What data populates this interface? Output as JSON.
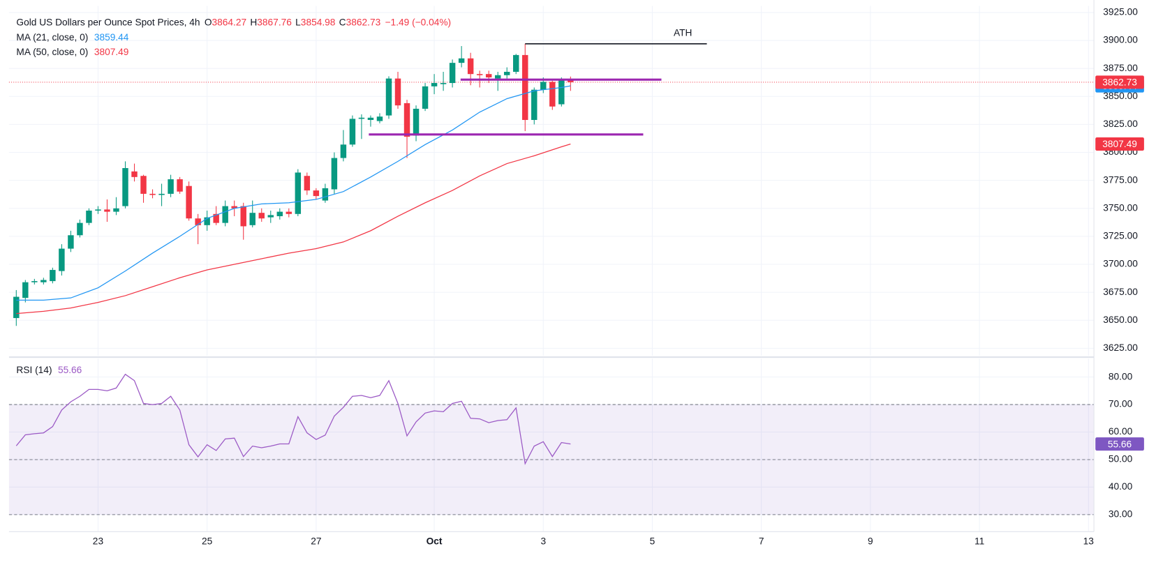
{
  "chart_data": [
    {
      "type": "candlestick",
      "title": "Gold US Dollars per Ounce Spot Prices, 4h",
      "ohlc_prefixes": [
        "O",
        "H",
        "L",
        "C"
      ],
      "change_label": "−1.49 (−0.04%)",
      "up_color": "#089981",
      "down_color": "#f23645",
      "x": [
        0,
        1,
        2,
        3,
        4,
        5,
        6,
        7,
        8,
        9,
        10,
        11,
        12,
        13,
        14,
        15,
        16,
        17,
        18,
        19,
        20,
        21,
        22,
        23,
        24,
        25,
        26,
        27,
        28,
        29,
        30,
        31,
        32,
        33,
        34,
        35,
        36,
        37,
        38,
        39,
        40,
        41,
        42,
        43,
        44,
        45,
        46,
        47,
        48,
        49,
        50,
        51,
        52,
        53,
        54,
        55,
        56,
        57,
        58,
        59,
        60,
        61
      ],
      "open": [
        3652,
        3670,
        3684,
        3684,
        3685,
        3694,
        3714,
        3726,
        3737,
        3748,
        3749,
        3747,
        3752,
        3783,
        3779,
        3763,
        3762,
        3763,
        3776,
        3770,
        3741,
        3735,
        3745,
        3737,
        3752,
        3752,
        3735,
        3746,
        3742,
        3743,
        3747,
        3745,
        3779,
        3766,
        3757,
        3767,
        3795,
        3807,
        3830,
        3829,
        3828,
        3833,
        3866,
        3844,
        3815,
        3839,
        3859,
        3861,
        3862,
        3880,
        3884,
        3870,
        3870,
        3866,
        3869,
        3872,
        3887,
        3829,
        3856,
        3863,
        3843,
        3864.27
      ],
      "high": [
        3677,
        3686,
        3687,
        3688,
        3697,
        3718,
        3730,
        3740,
        3750,
        3752,
        3758,
        3760,
        3792,
        3790,
        3780,
        3767,
        3772,
        3780,
        3778,
        3774,
        3745,
        3748,
        3752,
        3757,
        3757,
        3755,
        3757,
        3750,
        3748,
        3750,
        3750,
        3785,
        3782,
        3768,
        3772,
        3800,
        3820,
        3833,
        3834,
        3833,
        3835,
        3868,
        3872,
        3847,
        3842,
        3862,
        3870,
        3872,
        3883,
        3895,
        3889,
        3873,
        3873,
        3872,
        3876,
        3888,
        3897,
        3858,
        3867,
        3864,
        3867,
        3867.76
      ],
      "low": [
        3645,
        3666,
        3682,
        3682,
        3683,
        3690,
        3711,
        3724,
        3735,
        3745,
        3738,
        3744,
        3750,
        3774,
        3755,
        3759,
        3752,
        3760,
        3763,
        3739,
        3718,
        3730,
        3735,
        3734,
        3743,
        3722,
        3733,
        3738,
        3737,
        3740,
        3742,
        3743,
        3762,
        3758,
        3755,
        3763,
        3792,
        3805,
        3812,
        3823,
        3826,
        3830,
        3839,
        3795,
        3810,
        3837,
        3852,
        3855,
        3858,
        3876,
        3860,
        3858,
        3862,
        3855,
        3866,
        3870,
        3819,
        3825,
        3853,
        3838,
        3841,
        3854.98
      ],
      "close": [
        3671,
        3684,
        3685,
        3686,
        3695,
        3714,
        3726,
        3737,
        3748,
        3749,
        3747,
        3750,
        3786,
        3778,
        3763,
        3762,
        3763,
        3776,
        3765,
        3741,
        3735,
        3742,
        3737,
        3752,
        3750,
        3734,
        3746,
        3741,
        3744,
        3747,
        3745,
        3782,
        3766,
        3761,
        3768,
        3795,
        3807,
        3830,
        3831,
        3831,
        3832,
        3866,
        3842,
        3814,
        3839,
        3859,
        3862,
        3862,
        3880,
        3884,
        3870,
        3869,
        3867,
        3869,
        3872,
        3887,
        3829,
        3856,
        3863,
        3841,
        3865,
        3862.73
      ],
      "series": [
        {
          "name": "MA (21, close, 0)",
          "color": "#2196f3",
          "x": [
            0,
            3,
            6,
            9,
            12,
            15,
            18,
            21,
            24,
            27,
            30,
            33,
            36,
            39,
            42,
            45,
            48,
            51,
            54,
            57,
            60,
            61
          ],
          "values": [
            3668,
            3668,
            3670,
            3679,
            3694,
            3710,
            3725,
            3741,
            3750,
            3754,
            3755,
            3758,
            3765,
            3778,
            3792,
            3807,
            3820,
            3836,
            3848,
            3855,
            3858,
            3859.44
          ]
        },
        {
          "name": "MA (50, close, 0)",
          "color": "#f23645",
          "x": [
            0,
            3,
            6,
            9,
            12,
            15,
            18,
            21,
            24,
            27,
            30,
            33,
            36,
            39,
            42,
            45,
            48,
            51,
            54,
            57,
            60,
            61
          ],
          "values": [
            3656,
            3658,
            3661,
            3666,
            3672,
            3680,
            3688,
            3695,
            3700,
            3705,
            3710,
            3714,
            3720,
            3730,
            3743,
            3755,
            3766,
            3779,
            3790,
            3797,
            3805,
            3807.49
          ]
        }
      ],
      "annotations": [
        {
          "label": "ATH",
          "y": 3897,
          "x": [
            56,
            76
          ],
          "color": "#131722"
        },
        {
          "y": 3865,
          "x": [
            48.9,
            71
          ],
          "color": "#9c27b0"
        },
        {
          "y": 3816,
          "x": [
            38.8,
            69
          ],
          "color": "#9c27b0"
        }
      ],
      "last_price_line": true,
      "xlim": [
        -0.8,
        118.6
      ],
      "ylim": [
        3618.4,
        3930.9
      ],
      "yticks": [
        {
          "value": 3625,
          "label": "3625.00"
        },
        {
          "value": 3650,
          "label": "3650.00"
        },
        {
          "value": 3675,
          "label": "3675.00"
        },
        {
          "value": 3700,
          "label": "3700.00"
        },
        {
          "value": 3725,
          "label": "3725.00"
        },
        {
          "value": 3750,
          "label": "3750.00"
        },
        {
          "value": 3775,
          "label": "3775.00"
        },
        {
          "value": 3800,
          "label": "3800.00"
        },
        {
          "value": 3825,
          "label": "3825.00"
        },
        {
          "value": 3850,
          "label": "3850.00"
        },
        {
          "value": 3875,
          "label": "3875.00"
        },
        {
          "value": 3900,
          "label": "3900.00"
        },
        {
          "value": 3925,
          "label": "3925.00"
        }
      ],
      "grid": true
    },
    {
      "type": "line",
      "series": [
        {
          "name": "RSI (14)",
          "color": "#9b59c5",
          "x": [
            0,
            1,
            2,
            3,
            4,
            5,
            6,
            7,
            8,
            9,
            10,
            11,
            12,
            13,
            14,
            15,
            16,
            17,
            18,
            19,
            20,
            21,
            22,
            23,
            24,
            25,
            26,
            27,
            28,
            29,
            30,
            31,
            32,
            33,
            34,
            35,
            36,
            37,
            38,
            39,
            40,
            41,
            42,
            43,
            44,
            45,
            46,
            47,
            48,
            49,
            50,
            51,
            52,
            53,
            54,
            55,
            56,
            57,
            58,
            59,
            60,
            61
          ],
          "values": [
            55,
            59,
            59.4,
            59.7,
            62,
            68,
            71,
            73,
            75.5,
            75.5,
            75,
            76,
            81,
            78.7,
            70.4,
            70,
            70.4,
            73,
            68,
            55.4,
            51,
            55.4,
            53.3,
            57.5,
            57.8,
            51.1,
            54.9,
            54.3,
            54.9,
            55.7,
            55.7,
            65.6,
            59.7,
            57.3,
            58.9,
            65.8,
            69,
            73,
            73.3,
            72.5,
            73.3,
            78.7,
            70.4,
            58.6,
            63.7,
            66.9,
            67.7,
            67.4,
            70.4,
            71.2,
            65,
            64.8,
            63.4,
            64.2,
            64.5,
            68.8,
            48.5,
            54.9,
            56.5,
            51.1,
            56.2,
            55.66
          ]
        }
      ],
      "band": [
        30,
        70
      ],
      "hlines": [
        70,
        50,
        30
      ],
      "xlim": [
        -0.8,
        118.6
      ],
      "xticks": [
        {
          "value": 9,
          "label": "23"
        },
        {
          "value": 21,
          "label": "25"
        },
        {
          "value": 33,
          "label": "27"
        },
        {
          "value": 46,
          "label": "Oct"
        },
        {
          "value": 58,
          "label": "3"
        },
        {
          "value": 70,
          "label": "5"
        },
        {
          "value": 82,
          "label": "7"
        },
        {
          "value": 94,
          "label": "9"
        },
        {
          "value": 106,
          "label": "11"
        },
        {
          "value": 118,
          "label": "13"
        }
      ],
      "ylim": [
        23.8,
        86.7
      ],
      "yticks": [
        {
          "value": 30,
          "label": "30.00"
        },
        {
          "value": 40,
          "label": "40.00"
        },
        {
          "value": 50,
          "label": "50.00"
        },
        {
          "value": 60,
          "label": "60.00"
        },
        {
          "value": 70,
          "label": "70.00"
        },
        {
          "value": 80,
          "label": "80.00"
        }
      ],
      "grid": true
    }
  ]
}
